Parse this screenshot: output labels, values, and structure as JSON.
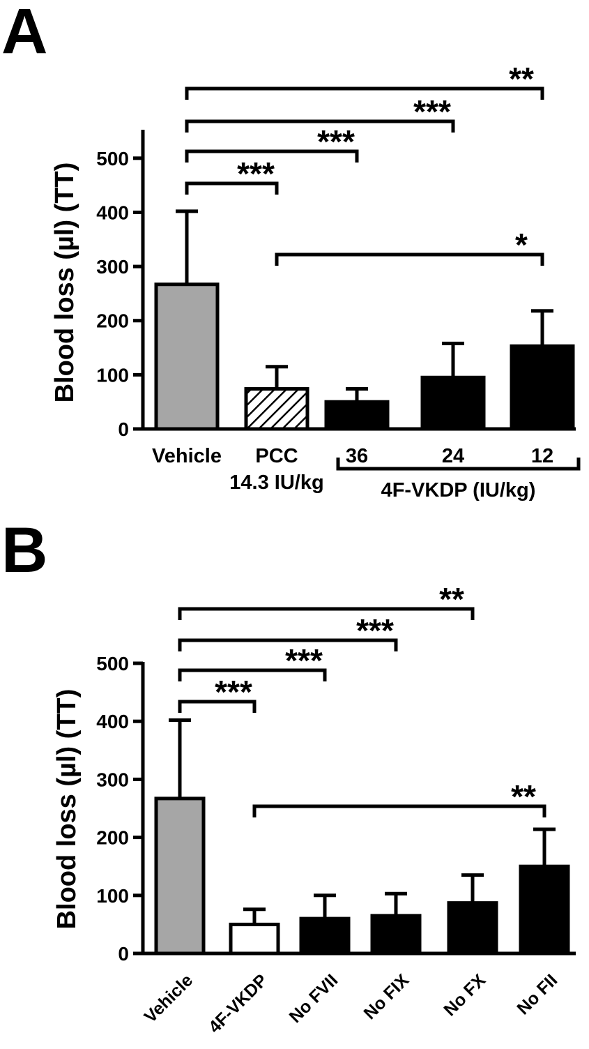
{
  "colors": {
    "vehicle": "#a6a6a6",
    "filled": "#000000",
    "open": "#ffffff",
    "stroke": "#000000"
  },
  "chart_data": [
    {
      "panel_label": "A",
      "type": "bar",
      "ylabel": "Blood loss (µl) (TT)",
      "ylim": [
        0,
        550
      ],
      "yticks": [
        "0",
        "100",
        "200",
        "300",
        "400",
        "500"
      ],
      "categories": [
        "Vehicle",
        "PCC",
        "36",
        "24",
        "12"
      ],
      "category_sublabels": [
        "",
        "14.3 IU/kg",
        "",
        "",
        ""
      ],
      "group_label": "4F-VKDP (IU/kg)",
      "values": [
        267,
        74,
        50,
        95,
        153
      ],
      "errors": [
        135,
        41,
        24,
        63,
        65
      ],
      "fills": [
        "gray",
        "hatched",
        "black",
        "black",
        "black"
      ],
      "significance": [
        {
          "from": 0,
          "to": 4,
          "label": "**"
        },
        {
          "from": 0,
          "to": 3,
          "label": "***"
        },
        {
          "from": 0,
          "to": 2,
          "label": "***"
        },
        {
          "from": 0,
          "to": 1,
          "label": "***"
        },
        {
          "from": 1,
          "to": 4,
          "label": "*"
        }
      ]
    },
    {
      "panel_label": "B",
      "type": "bar",
      "ylabel": "Blood loss (µl) (TT)",
      "ylim": [
        0,
        500
      ],
      "yticks": [
        "0",
        "100",
        "200",
        "300",
        "400",
        "500"
      ],
      "categories": [
        "Vehicle",
        "4F-VKDP",
        "No FVII",
        "No FIX",
        "No FX",
        "No FII"
      ],
      "values": [
        267,
        50,
        60,
        65,
        87,
        150
      ],
      "errors": [
        135,
        26,
        40,
        38,
        48,
        64
      ],
      "fills": [
        "gray",
        "white",
        "black",
        "black",
        "black",
        "black"
      ],
      "significance": [
        {
          "from": 0,
          "to": 4,
          "label": "**"
        },
        {
          "from": 0,
          "to": 3,
          "label": "***"
        },
        {
          "from": 0,
          "to": 2,
          "label": "***"
        },
        {
          "from": 0,
          "to": 1,
          "label": "***"
        },
        {
          "from": 1,
          "to": 5,
          "label": "**"
        }
      ]
    }
  ]
}
